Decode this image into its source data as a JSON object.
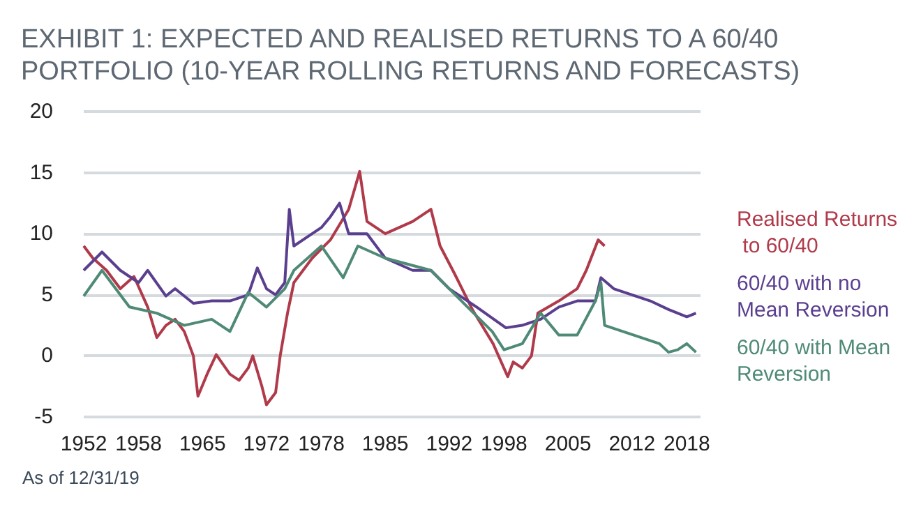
{
  "chart_data": {
    "type": "line",
    "title": "EXHIBIT 1: EXPECTED AND REALISED RETURNS TO A 60/40\nPORTFOLIO (10-YEAR ROLLING RETURNS AND FORECASTS)",
    "annotations": [
      "As of 12/31/19"
    ],
    "xlim": [
      1952,
      2019.5
    ],
    "xticks": [
      1952,
      1958,
      1965,
      1972,
      1978,
      1985,
      1992,
      1998,
      2005,
      2012,
      2018
    ],
    "ylim": [
      -5,
      20
    ],
    "yticks": [
      -5,
      0,
      5,
      10,
      15,
      20
    ],
    "grid": "y",
    "legend": "right",
    "marker": "none",
    "line_style": "solid",
    "series": [
      {
        "name": "Realised Returns to 60/40",
        "color": "#b03a4a",
        "x": [
          1952,
          1953,
          1954.5,
          1956,
          1957.5,
          1959,
          1960,
          1961,
          1962,
          1963,
          1964,
          1964.5,
          1965.5,
          1966.5,
          1968,
          1969,
          1970,
          1970.5,
          1971.5,
          1972,
          1973,
          1973.5,
          1974.3,
          1975,
          1977,
          1979,
          1981,
          1982.2,
          1983,
          1985,
          1988,
          1990,
          1991,
          1992.6,
          1994.6,
          1996.8,
          1998.4,
          1999,
          2000,
          2001,
          2001.7,
          2004,
          2006,
          2007,
          2008.3,
          2009
        ],
        "values": [
          9,
          8,
          7,
          5.5,
          6.5,
          4,
          1.5,
          2.5,
          3,
          2,
          0,
          -3.3,
          -1.5,
          0.1,
          -1.5,
          -2,
          -1,
          0,
          -2.5,
          -4,
          -3,
          0,
          3.5,
          6,
          8,
          9.5,
          12,
          15.1,
          11,
          10,
          11,
          12,
          9,
          6.7,
          3.7,
          1,
          -1.7,
          -0.5,
          -1,
          0,
          3.5,
          4.5,
          5.5,
          7,
          9.5,
          9
        ]
      },
      {
        "name": "60/40 with no Mean Reversion",
        "color": "#5b3f8f",
        "x": [
          1952,
          1954,
          1956,
          1958,
          1959,
          1961,
          1962,
          1964,
          1966,
          1968,
          1970,
          1971,
          1972,
          1973,
          1974,
          1974.5,
          1975,
          1977,
          1978,
          1979,
          1980,
          1981,
          1983,
          1985,
          1988,
          1990,
          1992,
          1995,
          1998.2,
          2000,
          2002,
          2004,
          2006,
          2008,
          2008.6,
          2010,
          2012,
          2014,
          2016,
          2017,
          2018,
          2019
        ],
        "values": [
          7,
          8.5,
          7,
          6,
          7,
          4.9,
          5.5,
          4.3,
          4.5,
          4.5,
          5,
          7.2,
          5.5,
          5,
          6,
          12,
          9,
          10,
          10.5,
          11.4,
          12.5,
          10,
          10,
          8,
          7,
          7,
          5.5,
          4,
          2.3,
          2.5,
          3,
          4,
          4.5,
          4.5,
          6.4,
          5.5,
          5,
          4.5,
          3.8,
          3.5,
          3.2,
          3.5
        ]
      },
      {
        "name": "60/40 with Mean Reversion",
        "color": "#4f8a76",
        "x": [
          1952,
          1954,
          1957,
          1960,
          1963,
          1966,
          1968,
          1970,
          1972,
          1974,
          1975,
          1978,
          1980.4,
          1982,
          1985,
          1990,
          1994,
          1996.7,
          1998,
          2000,
          2002,
          2004,
          2006,
          2008,
          2008.6,
          2009,
          2011,
          2013,
          2015,
          2016,
          2017,
          2018,
          2019
        ],
        "values": [
          4.9,
          7,
          4,
          3.5,
          2.5,
          3,
          2,
          5.2,
          4,
          5.5,
          7,
          9,
          6.4,
          9,
          8,
          7,
          4,
          2,
          0.5,
          1,
          3.5,
          1.7,
          1.7,
          4.5,
          6,
          2.5,
          2,
          1.5,
          1,
          0.3,
          0.5,
          1,
          0.3
        ]
      }
    ]
  }
}
